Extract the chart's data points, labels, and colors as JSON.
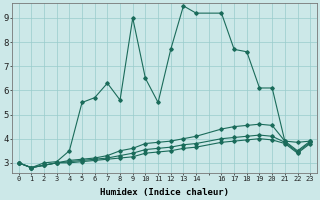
{
  "xlabel": "Humidex (Indice chaleur)",
  "bg_color": "#cce8e8",
  "line_color": "#1a6b5a",
  "grid_color": "#99cccc",
  "xlim": [
    -0.5,
    23.5
  ],
  "ylim": [
    2.6,
    9.6
  ],
  "yticks": [
    3,
    4,
    5,
    6,
    7,
    8,
    9
  ],
  "xticks": [
    0,
    1,
    2,
    3,
    4,
    5,
    6,
    7,
    8,
    9,
    10,
    11,
    12,
    13,
    14,
    15,
    16,
    17,
    18,
    19,
    20,
    21,
    22,
    23
  ],
  "xtick_labels": [
    "0",
    "1",
    "2",
    "3",
    "4",
    "5",
    "6",
    "7",
    "8",
    "9",
    "10",
    "11",
    "12",
    "13",
    "14",
    "",
    "16",
    "17",
    "18",
    "19",
    "20",
    "21",
    "22",
    "23"
  ],
  "series": [
    {
      "x": [
        0,
        1,
        2,
        3,
        4,
        5,
        6,
        7,
        8,
        9,
        10,
        11,
        12,
        13,
        14,
        16,
        17,
        18,
        19,
        20,
        21,
        22,
        23
      ],
      "y": [
        3.0,
        2.8,
        3.0,
        3.05,
        3.5,
        5.5,
        5.7,
        6.3,
        5.6,
        9.0,
        6.5,
        5.5,
        7.7,
        9.5,
        9.2,
        9.2,
        7.7,
        7.6,
        6.1,
        6.1,
        3.9,
        3.85,
        3.9
      ]
    },
    {
      "x": [
        0,
        1,
        2,
        3,
        4,
        5,
        6,
        7,
        8,
        9,
        10,
        11,
        12,
        13,
        14,
        16,
        17,
        18,
        19,
        20,
        21,
        22,
        23
      ],
      "y": [
        3.0,
        2.8,
        2.9,
        3.0,
        3.1,
        3.15,
        3.2,
        3.3,
        3.5,
        3.6,
        3.8,
        3.85,
        3.9,
        4.0,
        4.1,
        4.4,
        4.5,
        4.55,
        4.6,
        4.55,
        3.9,
        3.5,
        3.9
      ]
    },
    {
      "x": [
        0,
        1,
        2,
        3,
        4,
        5,
        6,
        7,
        8,
        9,
        10,
        11,
        12,
        13,
        14,
        16,
        17,
        18,
        19,
        20,
        21,
        22,
        23
      ],
      "y": [
        3.0,
        2.8,
        2.9,
        3.0,
        3.05,
        3.1,
        3.15,
        3.2,
        3.3,
        3.4,
        3.55,
        3.6,
        3.65,
        3.75,
        3.8,
        4.0,
        4.05,
        4.1,
        4.15,
        4.1,
        3.85,
        3.45,
        3.85
      ]
    },
    {
      "x": [
        0,
        1,
        2,
        3,
        4,
        5,
        6,
        7,
        8,
        9,
        10,
        11,
        12,
        13,
        14,
        16,
        17,
        18,
        19,
        20,
        21,
        22,
        23
      ],
      "y": [
        3.0,
        2.8,
        2.9,
        3.0,
        3.0,
        3.05,
        3.1,
        3.15,
        3.2,
        3.25,
        3.4,
        3.45,
        3.5,
        3.6,
        3.65,
        3.85,
        3.9,
        3.95,
        4.0,
        3.95,
        3.8,
        3.4,
        3.8
      ]
    }
  ]
}
